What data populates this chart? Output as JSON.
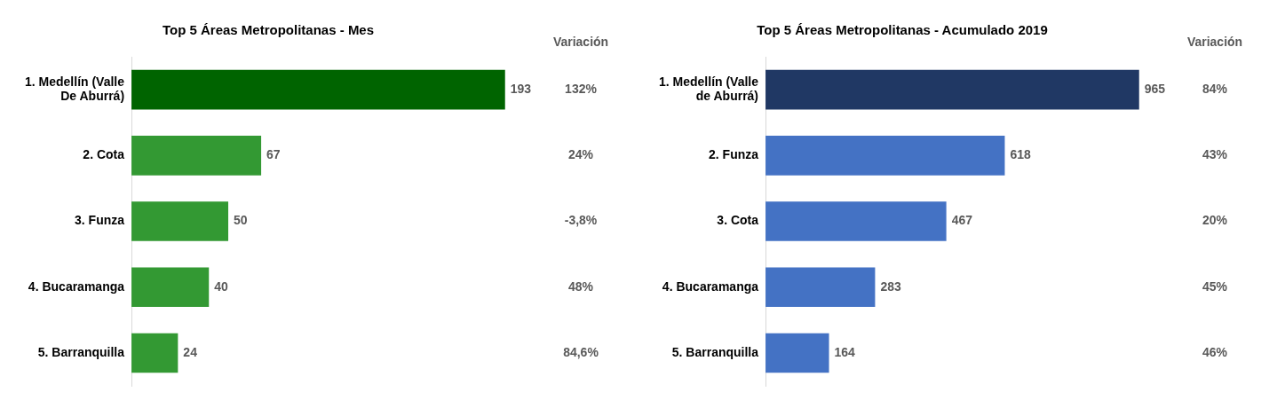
{
  "chart_data": [
    {
      "type": "bar",
      "orientation": "horizontal",
      "title": "Top 5 Áreas Metropolitanas - Mes",
      "categories": [
        "1. Medellín (Valle De Aburrá)",
        "2. Cota",
        "3. Funza",
        "4. Bucaramanga",
        "5. Barranquilla"
      ],
      "values": [
        193,
        67,
        50,
        40,
        24
      ],
      "colors": [
        "#006400",
        "#339933",
        "#339933",
        "#339933",
        "#339933"
      ],
      "data_labels": true,
      "legend": false,
      "tick_labels": "y",
      "annotations": [
        "Variación",
        "132%",
        "24%",
        "-3,8%",
        "48%",
        "84,6%"
      ]
    },
    {
      "type": "bar",
      "orientation": "horizontal",
      "title": "Top 5 Áreas Metropolitanas - Acumulado 2019",
      "categories": [
        "1. Medellín (Valle de Aburrá)",
        "2. Funza",
        "3. Cota",
        "4. Bucaramanga",
        "5. Barranquilla"
      ],
      "values": [
        965,
        618,
        467,
        283,
        164
      ],
      "colors": [
        "#203864",
        "#4472c4",
        "#4472c4",
        "#4472c4",
        "#4472c4"
      ],
      "data_labels": true,
      "legend": false,
      "tick_labels": "y",
      "annotations": [
        "Variación",
        "84%",
        "43%",
        "20%",
        "45%",
        "46%"
      ]
    }
  ]
}
